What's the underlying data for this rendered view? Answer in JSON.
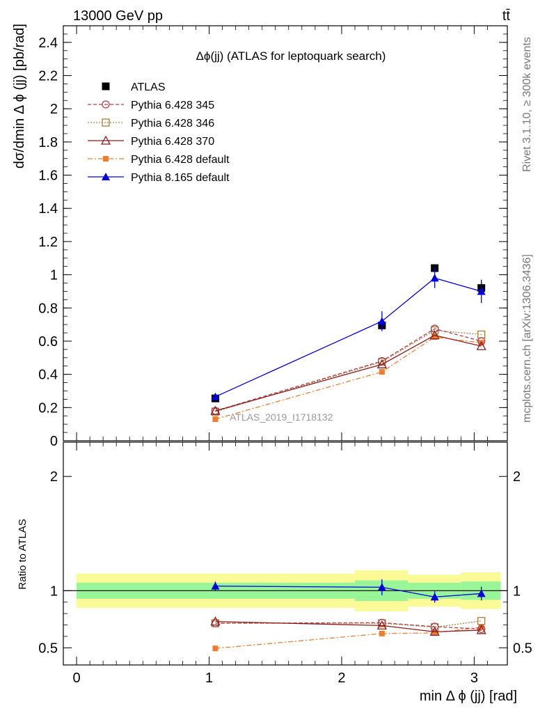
{
  "header": {
    "energy_label": "13000 GeV pp",
    "process_label": "tt̄",
    "side_label_top": "Rivet 3.1.10, ≥ 300k events",
    "side_label_bottom": "mcplots.cern.ch [arXiv:1306.3436]"
  },
  "colors": {
    "atlas": "#000000",
    "py345": "#b5404a",
    "py346": "#a97c3a",
    "py370": "#8b1a1a",
    "pydef": "#f07c2c",
    "py8": "#0000dd",
    "band_inner": "#98f598",
    "band_outer": "#fafa96"
  },
  "chart_data": [
    {
      "type": "line",
      "title": "Δϕ(jj) (ATLAS for leptoquark search)",
      "watermark": "ATLAS_2019_I1718132",
      "xlabel": "min Δ ϕ (jj) [rad]",
      "ylabel": "dσ/dmin Δ ϕ (jj) [pb/rad]",
      "xlim": [
        -0.1,
        3.25
      ],
      "ylim": [
        0,
        2.5
      ],
      "yticks": [
        "0",
        "0.2",
        "0.4",
        "0.6",
        "0.8",
        "1",
        "1.2",
        "1.4",
        "1.6",
        "1.8",
        "2",
        "2.2",
        "2.4"
      ],
      "x": [
        1.047,
        2.304,
        2.702,
        3.054
      ],
      "series": [
        {
          "name": "ATLAS",
          "values": [
            0.255,
            0.695,
            1.04,
            0.92
          ],
          "err": [
            0.012,
            0.03,
            0.015,
            0.035
          ]
        },
        {
          "name": "Pythia 6.428 345",
          "values": [
            0.18,
            0.48,
            0.675,
            0.6
          ],
          "err": [
            0,
            0,
            0,
            0
          ]
        },
        {
          "name": "Pythia 6.428 346",
          "values": [
            0.175,
            0.475,
            0.665,
            0.64
          ],
          "err": [
            0,
            0,
            0,
            0
          ]
        },
        {
          "name": "Pythia 6.428 370",
          "values": [
            0.18,
            0.46,
            0.635,
            0.57
          ],
          "err": [
            0,
            0,
            0,
            0
          ]
        },
        {
          "name": "Pythia 6.428 default",
          "values": [
            0.13,
            0.415,
            0.625,
            0.59
          ],
          "err": [
            0,
            0,
            0,
            0
          ]
        },
        {
          "name": "Pythia 8.165 default",
          "values": [
            0.265,
            0.72,
            0.98,
            0.9
          ],
          "err": [
            0.01,
            0.06,
            0.06,
            0.07
          ]
        }
      ]
    },
    {
      "type": "line",
      "ylabel": "Ratio to ATLAS",
      "xlabel": "min Δ ϕ (jj) [rad]",
      "xlim": [
        -0.1,
        3.25
      ],
      "ylim": [
        0.35,
        2.3
      ],
      "yticks": [
        "0.5",
        "1",
        "2"
      ],
      "xticks": [
        "0",
        "1",
        "2",
        "3"
      ],
      "bands": {
        "edges": [
          0,
          2.1,
          2.5,
          2.9,
          3.2
        ],
        "inner": [
          [
            0.93,
            1.07
          ],
          [
            0.91,
            1.09
          ],
          [
            0.93,
            1.07
          ],
          [
            0.92,
            1.08
          ]
        ],
        "outer": [
          [
            0.85,
            1.15
          ],
          [
            0.82,
            1.18
          ],
          [
            0.86,
            1.14
          ],
          [
            0.84,
            1.16
          ]
        ]
      },
      "x": [
        1.047,
        2.304,
        2.702,
        3.054
      ],
      "series": [
        {
          "name": "Pythia 6.428 345",
          "values": [
            0.715,
            0.72,
            0.685,
            0.665
          ],
          "err": [
            0,
            0,
            0,
            0
          ]
        },
        {
          "name": "Pythia 6.428 346",
          "values": [
            0.715,
            0.715,
            0.68,
            0.735
          ],
          "err": [
            0,
            0,
            0,
            0
          ]
        },
        {
          "name": "Pythia 6.428 370",
          "values": [
            0.73,
            0.695,
            0.64,
            0.655
          ],
          "err": [
            0,
            0,
            0,
            0
          ]
        },
        {
          "name": "Pythia 6.428 default",
          "values": [
            0.495,
            0.625,
            0.63,
            0.68
          ],
          "err": [
            0,
            0,
            0,
            0
          ]
        },
        {
          "name": "Pythia 8.165 default",
          "values": [
            1.04,
            1.03,
            0.945,
            0.975
          ],
          "err": [
            0.04,
            0.07,
            0.05,
            0.06
          ]
        }
      ]
    }
  ]
}
